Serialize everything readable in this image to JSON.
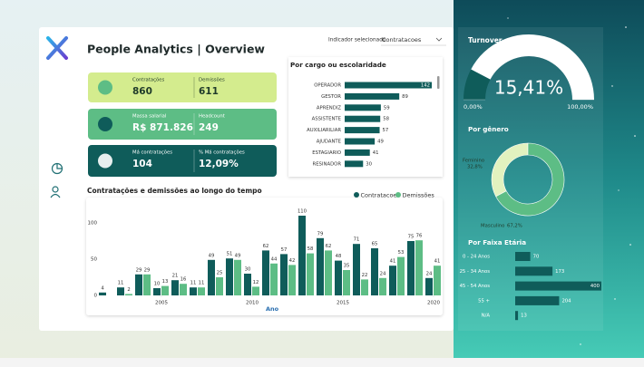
{
  "header": {
    "title": "People Analytics | Overview",
    "selector_label": "Indicador selecionado",
    "selector_value": "Contratacoes"
  },
  "kpis": [
    {
      "color": "#d4ec8e",
      "items": [
        {
          "label": "Contratações",
          "value": "860"
        },
        {
          "label": "Demissões",
          "value": "611"
        }
      ]
    },
    {
      "color": "#5dbd85",
      "items": [
        {
          "label": "Massa salarial",
          "value": "R$ 871.826"
        },
        {
          "label": "Headcount",
          "value": "249"
        }
      ]
    },
    {
      "color": "#0f5c5a",
      "items": [
        {
          "label": "Má contratações",
          "value": "104"
        },
        {
          "label": "% Má contratações",
          "value": "12,09%"
        }
      ]
    }
  ],
  "chart_data": [
    {
      "type": "hbar",
      "title": "Por cargo ou escolaridade",
      "categories": [
        "OPERADOR",
        "GESTOR",
        "APRENDIZ",
        "ASSISTENTE",
        "AUXILIARILIAR",
        "AJUDANTE",
        "ESTAGIARIO",
        "RESINADOR"
      ],
      "values": [
        142,
        89,
        59,
        58,
        57,
        49,
        41,
        30
      ],
      "color": "#0f5c5a"
    },
    {
      "type": "bar",
      "title": "Contratações e demissões ao longo do tempo",
      "x": [
        2002,
        2003,
        2004,
        2005,
        2006,
        2007,
        2008,
        2009,
        2010,
        2011,
        2012,
        2013,
        2014,
        2015,
        2016,
        2017,
        2018,
        2019,
        2020
      ],
      "xlabel": "Ano",
      "xlim": [
        2001.5,
        2020.5
      ],
      "xticks": [
        2005,
        2010,
        2015,
        2020
      ],
      "ylim": [
        0,
        115
      ],
      "yticks": [
        0,
        50,
        100
      ],
      "series": [
        {
          "name": "Contratacoes",
          "color": "#0f5c5a",
          "values": [
            4,
            11,
            29,
            10,
            21,
            11,
            49,
            51,
            30,
            62,
            57,
            110,
            79,
            48,
            71,
            65,
            41,
            75,
            24
          ]
        },
        {
          "name": "Demissões",
          "color": "#5dbd85",
          "values": [
            null,
            2,
            29,
            13,
            16,
            11,
            25,
            49,
            12,
            44,
            42,
            58,
            62,
            35,
            22,
            24,
            53,
            76,
            41
          ]
        }
      ]
    },
    {
      "type": "gauge",
      "title": "Turnover",
      "value": 15.41,
      "value_label": "15,41%",
      "range": [
        {
          "value": 0,
          "label": "0,00%"
        },
        {
          "value": 100,
          "label": "100,00%"
        }
      ],
      "color": "#0f5c5a"
    },
    {
      "type": "pie",
      "title": "Por gênero",
      "categories": [
        "Feminino",
        "Masculino"
      ],
      "values": [
        32.8,
        67.2
      ],
      "value_labels": [
        "32,8%",
        "67,2%"
      ],
      "colors": [
        "#e2f2bf",
        "#5dbd85"
      ]
    },
    {
      "type": "hbar",
      "title": "Por Faixa Etária",
      "categories": [
        "0 - 24 Anos",
        "25 - 34 Anos",
        "45 - 54 Anos",
        "55 +",
        "N/A"
      ],
      "values": [
        70,
        173,
        400,
        204,
        13
      ],
      "color": "#0f5c5a"
    }
  ]
}
